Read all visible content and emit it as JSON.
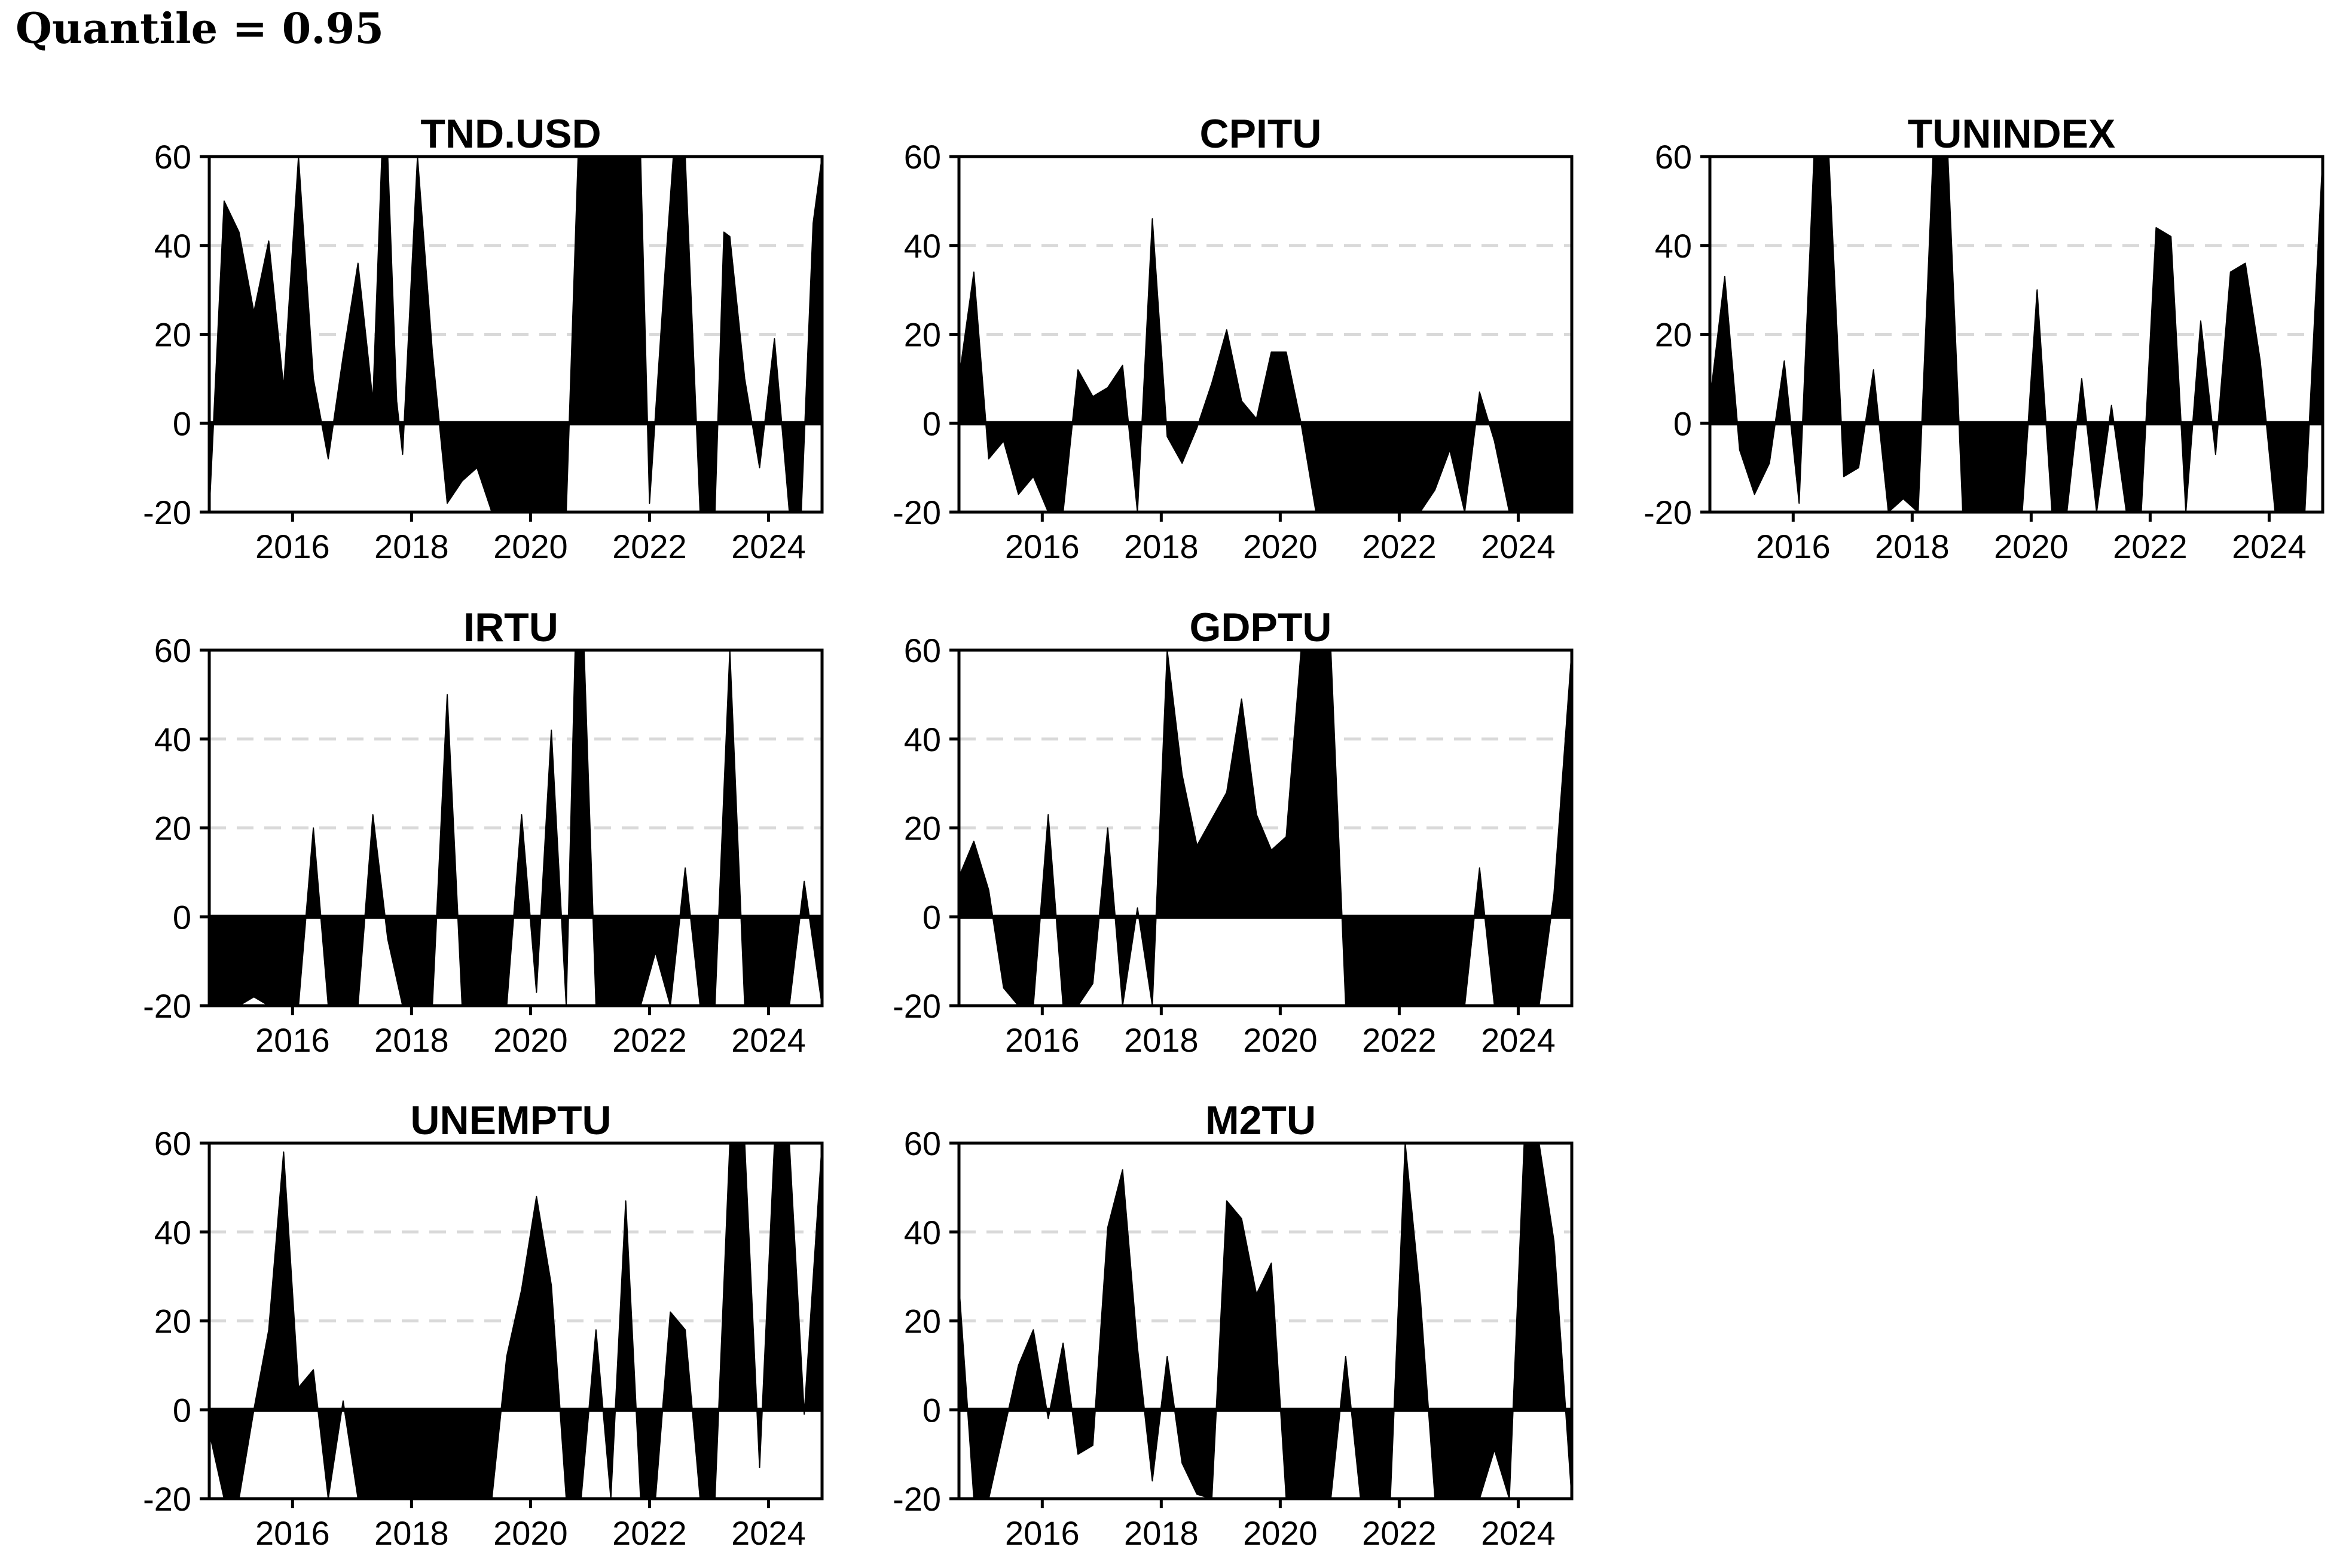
{
  "title": "Quantile = 0.95",
  "chart_data": {
    "type": "area",
    "title": "Quantile = 0.95",
    "grid": true,
    "x_axis": {
      "xlim": [
        2014.6,
        2024.9
      ],
      "xticks": [
        2016,
        2018,
        2020,
        2022,
        2024
      ],
      "tick_labels": [
        "2016",
        "2018",
        "2020",
        "2022",
        "2024"
      ]
    },
    "y_axis": {
      "ylim": [
        -20,
        60
      ],
      "yticks": [
        -20,
        0,
        20,
        40,
        60
      ],
      "tick_labels": [
        "-20",
        "0",
        "20",
        "40",
        "60"
      ]
    },
    "panels": [
      {
        "name": "TND.USD",
        "x": [
          2014.6,
          2014.85,
          2015.1,
          2015.35,
          2015.6,
          2015.85,
          2016.1,
          2016.35,
          2016.6,
          2016.85,
          2017.1,
          2017.35,
          2017.5,
          2017.6,
          2017.75,
          2017.85,
          2018.1,
          2018.35,
          2018.6,
          2018.85,
          2019.1,
          2019.35,
          2019.6,
          2019.85,
          2020.1,
          2020.35,
          2020.6,
          2020.8,
          2021.0,
          2021.2,
          2021.4,
          2021.6,
          2021.85,
          2022.0,
          2022.25,
          2022.4,
          2022.6,
          2022.85,
          2023.0,
          2023.1,
          2023.25,
          2023.35,
          2023.6,
          2023.85,
          2024.1,
          2024.35,
          2024.55,
          2024.75,
          2024.9
        ],
        "values": [
          -20,
          50,
          43,
          25,
          41,
          8,
          60,
          10,
          -8,
          15,
          36,
          5,
          60,
          60,
          5,
          -7,
          60,
          16,
          -18,
          -13,
          -10,
          -20,
          -20,
          -20,
          -20,
          -20,
          -20,
          60,
          60,
          60,
          60,
          60,
          60,
          -18,
          32,
          60,
          60,
          -20,
          -20,
          -20,
          43,
          42,
          10,
          -10,
          19,
          -20,
          -20,
          45,
          60
        ]
      },
      {
        "name": "CPITU",
        "x": [
          2014.6,
          2014.85,
          2015.1,
          2015.35,
          2015.6,
          2015.85,
          2016.1,
          2016.35,
          2016.6,
          2016.85,
          2017.1,
          2017.35,
          2017.6,
          2017.85,
          2018.1,
          2018.35,
          2018.6,
          2018.85,
          2019.1,
          2019.35,
          2019.6,
          2019.85,
          2020.1,
          2020.35,
          2020.6,
          2020.85,
          2021.1,
          2021.35,
          2021.6,
          2021.85,
          2022.1,
          2022.35,
          2022.6,
          2022.85,
          2023.1,
          2023.35,
          2023.6,
          2023.85,
          2024.1,
          2024.35,
          2024.6,
          2024.9
        ],
        "values": [
          10,
          34,
          -8,
          -4,
          -16,
          -12,
          -20,
          -20,
          12,
          6,
          8,
          13,
          -20,
          46,
          -3,
          -9,
          -1,
          9,
          21,
          5,
          1,
          16,
          16,
          0,
          -20,
          -20,
          -20,
          -20,
          -20,
          -20,
          -20,
          -20,
          -15,
          -6,
          -20,
          7,
          -4,
          -20,
          -20,
          -20,
          -20,
          -20
        ]
      },
      {
        "name": "TUNINDEX",
        "x": [
          2014.6,
          2014.85,
          2015.1,
          2015.35,
          2015.6,
          2015.85,
          2016.1,
          2016.35,
          2016.6,
          2016.85,
          2017.1,
          2017.35,
          2017.6,
          2017.85,
          2018.1,
          2018.35,
          2018.6,
          2018.85,
          2019.1,
          2019.35,
          2019.6,
          2019.85,
          2020.1,
          2020.35,
          2020.6,
          2020.85,
          2021.1,
          2021.35,
          2021.6,
          2021.85,
          2022.1,
          2022.35,
          2022.6,
          2022.85,
          2023.1,
          2023.35,
          2023.6,
          2023.85,
          2024.1,
          2024.35,
          2024.6,
          2024.9
        ],
        "values": [
          5,
          33,
          -6,
          -16,
          -9,
          14,
          -18,
          60,
          60,
          -12,
          -10,
          12,
          -20,
          -17,
          -20,
          60,
          60,
          -20,
          -20,
          -20,
          -20,
          -20,
          30,
          -20,
          -20,
          10,
          -20,
          4,
          -20,
          -20,
          44,
          42,
          -20,
          23,
          -7,
          34,
          36,
          14,
          -20,
          -20,
          -20,
          60
        ]
      },
      {
        "name": "IRTU",
        "x": [
          2014.6,
          2014.85,
          2015.1,
          2015.35,
          2015.6,
          2015.85,
          2016.1,
          2016.35,
          2016.6,
          2016.85,
          2017.1,
          2017.35,
          2017.6,
          2017.85,
          2018.1,
          2018.35,
          2018.6,
          2018.85,
          2019.1,
          2019.35,
          2019.6,
          2019.85,
          2020.1,
          2020.35,
          2020.6,
          2020.75,
          2020.9,
          2021.1,
          2021.35,
          2021.6,
          2021.85,
          2022.1,
          2022.35,
          2022.6,
          2022.85,
          2023.1,
          2023.35,
          2023.6,
          2023.85,
          2024.1,
          2024.35,
          2024.6,
          2024.9
        ],
        "values": [
          -20,
          -20,
          -20,
          -18,
          -20,
          -20,
          -20,
          20,
          -20,
          -20,
          -20,
          23,
          -5,
          -20,
          -20,
          -20,
          50,
          -20,
          -20,
          -20,
          -20,
          23,
          -17,
          42,
          -20,
          60,
          60,
          -20,
          -20,
          -20,
          -20,
          -8,
          -20,
          11,
          -20,
          -20,
          60,
          -20,
          -20,
          -20,
          -20,
          8,
          -20
        ]
      },
      {
        "name": "GDPTU",
        "x": [
          2014.6,
          2014.85,
          2015.1,
          2015.35,
          2015.6,
          2015.85,
          2016.1,
          2016.35,
          2016.6,
          2016.85,
          2017.1,
          2017.35,
          2017.6,
          2017.85,
          2018.1,
          2018.35,
          2018.6,
          2018.85,
          2019.1,
          2019.35,
          2019.6,
          2019.85,
          2020.1,
          2020.35,
          2020.6,
          2020.85,
          2021.1,
          2021.35,
          2021.6,
          2021.85,
          2022.1,
          2022.35,
          2022.6,
          2022.85,
          2023.1,
          2023.35,
          2023.6,
          2023.85,
          2024.1,
          2024.35,
          2024.6,
          2024.9
        ],
        "values": [
          9,
          17,
          6,
          -16,
          -20,
          -20,
          23,
          -20,
          -20,
          -15,
          20,
          -20,
          2,
          -20,
          60,
          32,
          16,
          22,
          28,
          49,
          23,
          15,
          18,
          60,
          60,
          60,
          -20,
          -20,
          -20,
          -20,
          -20,
          -20,
          -20,
          -20,
          -20,
          11,
          -20,
          -20,
          -20,
          -20,
          5,
          60
        ]
      },
      {
        "name": "UNEMPTU",
        "x": [
          2014.6,
          2014.85,
          2015.1,
          2015.35,
          2015.6,
          2015.85,
          2016.1,
          2016.35,
          2016.6,
          2016.85,
          2017.1,
          2017.35,
          2017.6,
          2017.85,
          2018.1,
          2018.35,
          2018.6,
          2018.85,
          2019.1,
          2019.35,
          2019.6,
          2019.85,
          2020.1,
          2020.35,
          2020.6,
          2020.85,
          2021.1,
          2021.35,
          2021.6,
          2021.85,
          2022.1,
          2022.35,
          2022.6,
          2022.85,
          2023.1,
          2023.35,
          2023.6,
          2023.85,
          2024.1,
          2024.35,
          2024.6,
          2024.9
        ],
        "values": [
          -5,
          -20,
          -20,
          0,
          18,
          58,
          5,
          9,
          -20,
          2,
          -20,
          -20,
          -20,
          -20,
          -20,
          -20,
          -20,
          -20,
          -20,
          -20,
          12,
          27,
          48,
          28,
          -20,
          -20,
          18,
          -20,
          47,
          -20,
          -20,
          22,
          18,
          -20,
          -20,
          60,
          60,
          -13,
          60,
          60,
          -1,
          60
        ]
      },
      {
        "name": "M2TU",
        "x": [
          2014.6,
          2014.85,
          2015.1,
          2015.35,
          2015.6,
          2015.85,
          2016.1,
          2016.35,
          2016.6,
          2016.85,
          2017.1,
          2017.35,
          2017.6,
          2017.85,
          2018.1,
          2018.35,
          2018.6,
          2018.85,
          2019.1,
          2019.35,
          2019.6,
          2019.85,
          2020.1,
          2020.35,
          2020.6,
          2020.85,
          2021.1,
          2021.35,
          2021.6,
          2021.85,
          2022.1,
          2022.35,
          2022.6,
          2022.85,
          2023.1,
          2023.35,
          2023.6,
          2023.85,
          2024.1,
          2024.35,
          2024.6,
          2024.9
        ],
        "values": [
          28,
          -20,
          -20,
          -5,
          10,
          18,
          -2,
          15,
          -10,
          -8,
          41,
          54,
          14,
          -16,
          12,
          -12,
          -19,
          -20,
          47,
          43,
          26,
          33,
          -20,
          -20,
          -20,
          -20,
          12,
          -20,
          -20,
          -20,
          60,
          26,
          -20,
          -20,
          -20,
          -20,
          -9,
          -20,
          60,
          60,
          38,
          -20
        ]
      }
    ]
  }
}
